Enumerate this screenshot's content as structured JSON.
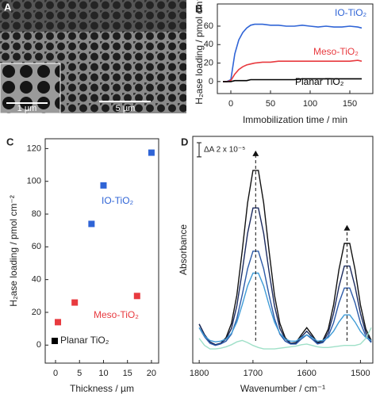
{
  "panel_a": {
    "label": "A",
    "inset_scale": "1 µm",
    "main_scale": "5 µm"
  },
  "chart_data": [
    {
      "type": "line",
      "panel_label": "B",
      "x_label": "Immobilization time / min",
      "y_label": "H₂ase loading / pmol cm⁻²",
      "x": [
        -10,
        -5,
        0,
        5,
        10,
        15,
        20,
        25,
        30,
        40,
        50,
        60,
        70,
        80,
        90,
        100,
        110,
        120,
        130,
        140,
        150,
        160,
        165
      ],
      "series": [
        {
          "name": "IO-TiO₂",
          "color": "#2f64d6",
          "values": [
            0,
            0,
            2,
            30,
            45,
            53,
            58,
            61,
            62,
            62,
            61,
            61,
            60,
            60,
            61,
            60,
            59,
            60,
            59,
            59,
            60,
            59,
            58
          ]
        },
        {
          "name": "Meso-TiO₂",
          "color": "#e83a3f",
          "values": [
            0,
            0,
            1,
            8,
            13,
            16,
            18,
            19,
            20,
            21,
            21,
            22,
            22,
            22,
            22,
            22,
            22,
            22,
            22,
            22,
            22,
            23,
            22
          ]
        },
        {
          "name": "Planar TiO₂",
          "color": "#000000",
          "values": [
            0,
            0,
            0,
            1,
            1,
            1,
            1,
            2,
            2,
            2,
            2,
            2,
            2,
            2,
            3,
            3,
            3,
            3,
            3,
            3,
            3,
            3,
            3
          ]
        }
      ],
      "xlim": [
        -17,
        179
      ],
      "ylim": [
        -13,
        84
      ],
      "xticks": [
        0,
        50,
        100,
        150
      ],
      "yticks": [
        0,
        20,
        40,
        60
      ]
    },
    {
      "type": "scatter",
      "panel_label": "C",
      "x_label": "Thickness / µm",
      "y_label": "H₂ase loading / pmol cm⁻²",
      "series": [
        {
          "name": "IO-TiO₂",
          "color": "#2f64d6",
          "x": [
            7.5,
            10,
            20
          ],
          "values": [
            74,
            97.5,
            117.5
          ]
        },
        {
          "name": "Meso-TiO₂",
          "color": "#e83a3f",
          "x": [
            0.5,
            4,
            17
          ],
          "values": [
            14,
            26,
            30
          ]
        },
        {
          "name": "Planar TiO₂",
          "color": "#000000",
          "x": [],
          "values": []
        }
      ],
      "xlim": [
        -2.15,
        21.5
      ],
      "ylim": [
        -11,
        126
      ],
      "xticks": [
        0,
        5,
        10,
        15,
        20
      ],
      "yticks": [
        0,
        20,
        40,
        60,
        80,
        100,
        120
      ]
    },
    {
      "type": "line",
      "panel_label": "D",
      "x_label": "Wavenumber / cm⁻¹",
      "y_label": "Absorbance",
      "x": [
        1800,
        1790,
        1780,
        1770,
        1760,
        1750,
        1740,
        1730,
        1720,
        1710,
        1700,
        1690,
        1680,
        1670,
        1660,
        1650,
        1640,
        1630,
        1620,
        1610,
        1600,
        1590,
        1580,
        1570,
        1560,
        1550,
        1540,
        1530,
        1520,
        1510,
        1500,
        1490,
        1480
      ],
      "series": [
        {
          "color": "#111111",
          "values": [
            5.5,
            4.0,
            3.0,
            2.6,
            2.8,
            3.6,
            5.6,
            9.6,
            15.8,
            22.6,
            27.2,
            27.2,
            22.6,
            15.8,
            9.6,
            5.6,
            3.6,
            2.8,
            2.9,
            4.0,
            5.0,
            4.0,
            2.9,
            3.2,
            4.8,
            8.2,
            13.2,
            16.9,
            16.9,
            13.2,
            8.2,
            4.8,
            3.2
          ]
        },
        {
          "color": "#1b2a5e",
          "values": [
            5.5,
            4.0,
            3.0,
            2.6,
            2.8,
            3.4,
            4.9,
            8.1,
            12.9,
            18.3,
            21.9,
            21.9,
            18.3,
            12.9,
            8.1,
            4.9,
            3.4,
            2.8,
            2.8,
            3.7,
            4.5,
            3.7,
            2.8,
            3.0,
            4.3,
            7.0,
            10.8,
            13.7,
            13.7,
            10.8,
            7.0,
            4.3,
            3.0
          ]
        },
        {
          "color": "#2c5aa8",
          "values": [
            5.0,
            3.7,
            2.8,
            2.5,
            2.7,
            3.1,
            4.1,
            6.3,
            9.6,
            13.3,
            15.8,
            15.8,
            13.3,
            9.6,
            6.3,
            4.1,
            3.1,
            2.7,
            2.7,
            3.4,
            4.0,
            3.4,
            2.7,
            2.9,
            3.8,
            5.7,
            8.5,
            10.6,
            10.6,
            8.5,
            5.7,
            3.8,
            2.9
          ]
        },
        {
          "color": "#3f9bd6",
          "values": [
            5.0,
            3.8,
            3.2,
            3.0,
            3.1,
            3.4,
            4.2,
            5.8,
            8.2,
            10.9,
            12.7,
            12.7,
            10.9,
            8.2,
            5.8,
            4.2,
            3.4,
            3.1,
            3.1,
            3.6,
            4.0,
            3.6,
            3.1,
            3.2,
            3.6,
            4.5,
            5.8,
            6.8,
            6.8,
            5.8,
            4.5,
            3.6,
            3.2
          ]
        },
        {
          "color": "#9fe0c8",
          "values": [
            3.5,
            2.5,
            2.0,
            2.0,
            2.1,
            2.3,
            2.6,
            3.0,
            3.2,
            2.9,
            2.5,
            2.2,
            2.0,
            2.0,
            2.0,
            2.1,
            2.2,
            2.3,
            2.4,
            2.6,
            2.7,
            2.5,
            2.3,
            2.2,
            2.2,
            2.3,
            2.4,
            2.5,
            2.5,
            2.5,
            2.7,
            3.5,
            5.0
          ]
        }
      ],
      "scale_bar": {
        "value": 2,
        "label": "ΔA 2 x 10⁻⁵"
      },
      "peak_markers": {
        "x": [
          1695,
          1525
        ],
        "y": [
          30,
          19.5
        ]
      },
      "xlim": [
        1812,
        1477
      ],
      "ylim": [
        0,
        32
      ],
      "xticks": [
        1800,
        1700,
        1600,
        1500
      ]
    }
  ]
}
